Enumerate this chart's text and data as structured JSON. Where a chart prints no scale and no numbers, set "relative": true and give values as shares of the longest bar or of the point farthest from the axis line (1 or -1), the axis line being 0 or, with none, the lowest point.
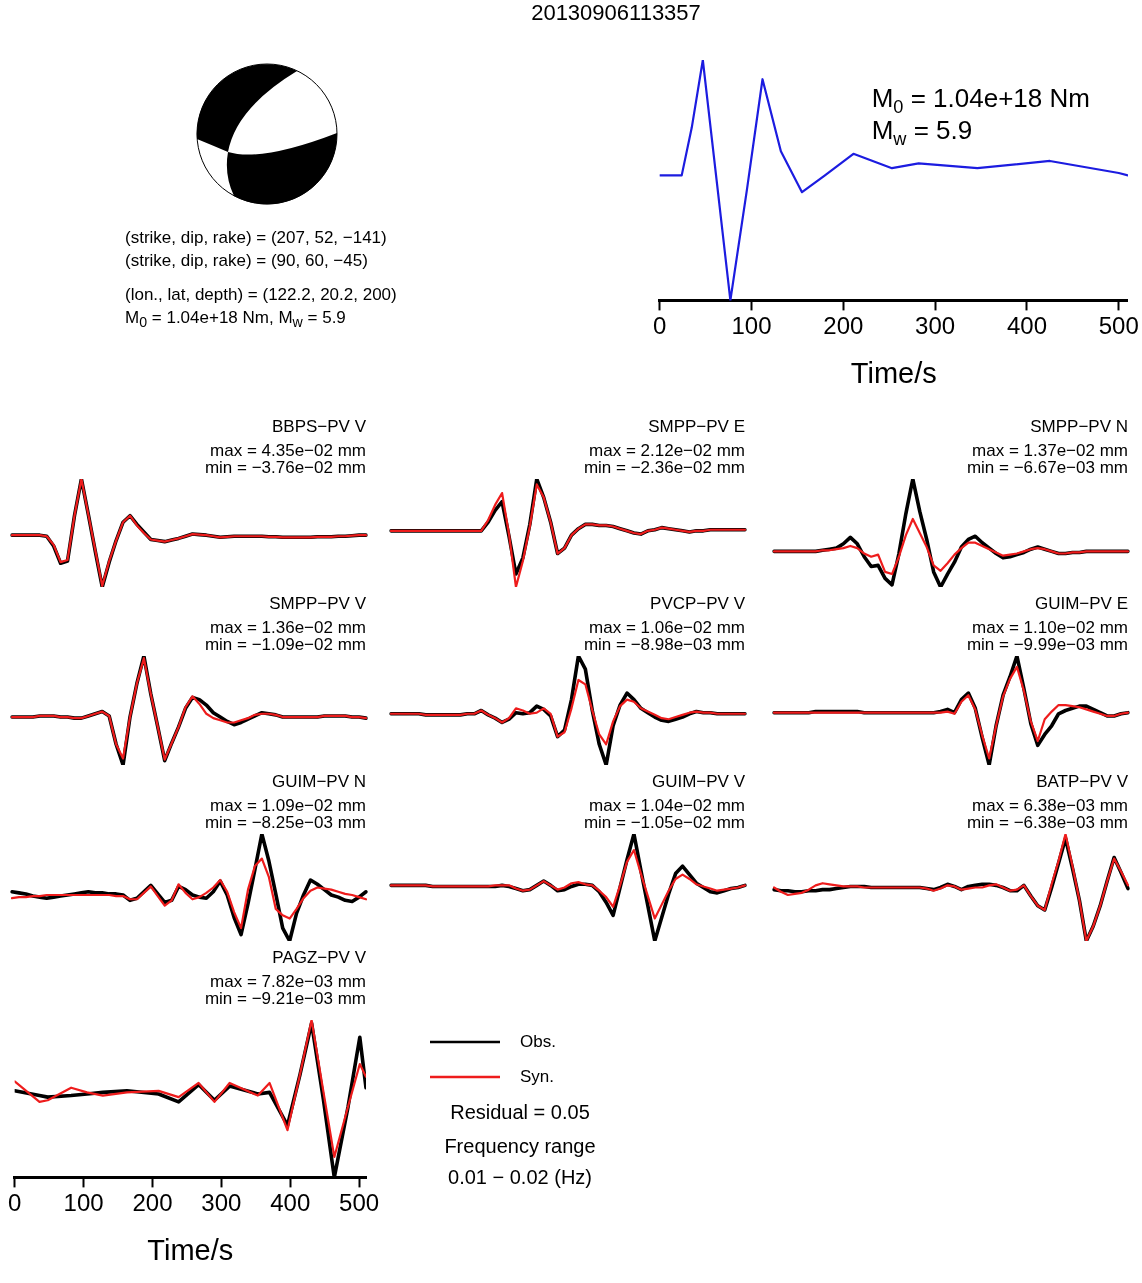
{
  "chart_data": [
    {
      "type": "other",
      "title": "20130906113357",
      "annotations": [
        "(strike, dip, rake) = (207, 52, −141)",
        "(strike, dip, rake) = (90, 60, −45)",
        "(lon., lat, depth) = (122.2, 20.2, 200)",
        "M$_{0}$ = 1.04e+18 Nm, M$_{w}$ = 5.9"
      ]
    },
    {
      "type": "line",
      "relative": true,
      "tick_labels": "x",
      "xlabel": "Time/s",
      "xlim": [
        0,
        510
      ],
      "xticks": [
        0,
        100,
        200,
        300,
        400,
        500
      ],
      "annotations": [
        "M$_{0}$ = 1.04e+18 Nm",
        "M$_{w}$ = 5.9"
      ],
      "x": [
        0,
        24,
        35,
        47,
        62,
        77,
        95,
        112,
        132,
        155,
        180,
        211,
        253,
        282,
        346,
        425,
        500,
        510
      ],
      "series": [
        {
          "color": "#1c1ce0",
          "values": [
            0.52,
            0.52,
            0.72,
            1.0,
            0.5,
            0.0,
            0.46,
            0.92,
            0.62,
            0.45,
            0.52,
            0.61,
            0.55,
            0.57,
            0.55,
            0.58,
            0.53,
            0.52
          ]
        }
      ]
    },
    {
      "type": "line",
      "relative": true,
      "tick_labels": false,
      "title": "BBPS−PV V",
      "annotations": [
        "max = 4.35e−02 mm",
        "min = −3.76e−02 mm"
      ],
      "categories": [
        null,
        null,
        null,
        null,
        null,
        null,
        null,
        null,
        null,
        null,
        null,
        null,
        null,
        null,
        null,
        null,
        null,
        null,
        null,
        null,
        null,
        null,
        null,
        null,
        null,
        null,
        null,
        null,
        null,
        null,
        null,
        null,
        null,
        null,
        null,
        null,
        null,
        null,
        null,
        null,
        null,
        null,
        null,
        null,
        null,
        null,
        null,
        null,
        null,
        null,
        null,
        null
      ],
      "series": [
        {
          "color": "#000000",
          "values": [
            0.48,
            0.48,
            0.48,
            0.48,
            0.48,
            0.47,
            0.38,
            0.22,
            0.24,
            0.66,
            1.0,
            0.67,
            0.33,
            0.0,
            0.23,
            0.43,
            0.6,
            0.66,
            0.58,
            0.51,
            0.44,
            0.43,
            0.42,
            0.435,
            0.45,
            0.47,
            0.49,
            0.485,
            0.48,
            0.47,
            0.46,
            0.465,
            0.47,
            0.47,
            0.47,
            0.47,
            0.47,
            0.465,
            0.465,
            0.46,
            0.46,
            0.46,
            0.46,
            0.46,
            0.465,
            0.465,
            0.465,
            0.47,
            0.47,
            0.475,
            0.48,
            0.48
          ]
        },
        {
          "color": "#ee1c1c",
          "values": [
            0.48,
            0.48,
            0.48,
            0.48,
            0.48,
            0.47,
            0.39,
            0.23,
            0.25,
            0.66,
            1.0,
            0.67,
            0.34,
            0.01,
            0.24,
            0.43,
            0.6,
            0.66,
            0.57,
            0.5,
            0.44,
            0.43,
            0.42,
            0.435,
            0.45,
            0.47,
            0.49,
            0.485,
            0.48,
            0.47,
            0.46,
            0.465,
            0.47,
            0.47,
            0.47,
            0.47,
            0.47,
            0.465,
            0.465,
            0.46,
            0.46,
            0.46,
            0.46,
            0.46,
            0.465,
            0.465,
            0.465,
            0.47,
            0.47,
            0.475,
            0.48,
            0.48
          ]
        }
      ]
    },
    {
      "type": "line",
      "relative": true,
      "tick_labels": false,
      "title": "SMPP−PV E",
      "annotations": [
        "max = 2.12e−02 mm",
        "min = −2.36e−02 mm"
      ],
      "categories": [
        null,
        null,
        null,
        null,
        null,
        null,
        null,
        null,
        null,
        null,
        null,
        null,
        null,
        null,
        null,
        null,
        null,
        null,
        null,
        null,
        null,
        null,
        null,
        null,
        null,
        null,
        null,
        null,
        null,
        null,
        null,
        null,
        null,
        null,
        null,
        null,
        null,
        null,
        null,
        null,
        null,
        null,
        null,
        null,
        null,
        null,
        null,
        null,
        null,
        null,
        null,
        null
      ],
      "series": [
        {
          "color": "#000000",
          "values": [
            0.52,
            0.52,
            0.52,
            0.52,
            0.52,
            0.52,
            0.52,
            0.52,
            0.52,
            0.52,
            0.52,
            0.52,
            0.52,
            0.52,
            0.6,
            0.71,
            0.79,
            0.47,
            0.12,
            0.27,
            0.58,
            1.0,
            0.83,
            0.6,
            0.31,
            0.36,
            0.48,
            0.54,
            0.58,
            0.58,
            0.57,
            0.57,
            0.56,
            0.54,
            0.52,
            0.5,
            0.49,
            0.52,
            0.53,
            0.55,
            0.54,
            0.53,
            0.52,
            0.51,
            0.52,
            0.52,
            0.53,
            0.53,
            0.53,
            0.53,
            0.53,
            0.53
          ]
        },
        {
          "color": "#ee1c1c",
          "values": [
            0.52,
            0.52,
            0.52,
            0.52,
            0.52,
            0.52,
            0.52,
            0.52,
            0.52,
            0.52,
            0.52,
            0.52,
            0.52,
            0.52,
            0.62,
            0.76,
            0.87,
            0.49,
            0.0,
            0.24,
            0.56,
            0.95,
            0.83,
            0.6,
            0.31,
            0.36,
            0.48,
            0.54,
            0.58,
            0.58,
            0.57,
            0.57,
            0.56,
            0.54,
            0.52,
            0.5,
            0.49,
            0.52,
            0.53,
            0.55,
            0.54,
            0.53,
            0.52,
            0.51,
            0.52,
            0.52,
            0.53,
            0.53,
            0.53,
            0.53,
            0.53,
            0.53
          ]
        }
      ]
    },
    {
      "type": "line",
      "relative": true,
      "tick_labels": false,
      "title": "SMPP−PV N",
      "annotations": [
        "max = 1.37e−02 mm",
        "min = −6.67e−03 mm"
      ],
      "categories": [
        null,
        null,
        null,
        null,
        null,
        null,
        null,
        null,
        null,
        null,
        null,
        null,
        null,
        null,
        null,
        null,
        null,
        null,
        null,
        null,
        null,
        null,
        null,
        null,
        null,
        null,
        null,
        null,
        null,
        null,
        null,
        null,
        null,
        null,
        null,
        null,
        null,
        null,
        null,
        null,
        null,
        null,
        null,
        null,
        null,
        null,
        null,
        null,
        null,
        null,
        null,
        null
      ],
      "series": [
        {
          "color": "#000000",
          "values": [
            0.33,
            0.33,
            0.33,
            0.33,
            0.33,
            0.33,
            0.33,
            0.34,
            0.35,
            0.36,
            0.4,
            0.46,
            0.4,
            0.28,
            0.19,
            0.2,
            0.08,
            0.02,
            0.31,
            0.68,
            1.0,
            0.7,
            0.44,
            0.14,
            0.0,
            0.12,
            0.23,
            0.37,
            0.44,
            0.47,
            0.41,
            0.36,
            0.31,
            0.27,
            0.28,
            0.3,
            0.32,
            0.35,
            0.37,
            0.35,
            0.33,
            0.31,
            0.31,
            0.32,
            0.32,
            0.33,
            0.33,
            0.33,
            0.33,
            0.33,
            0.33,
            0.33
          ]
        },
        {
          "color": "#ee1c1c",
          "values": [
            0.33,
            0.33,
            0.33,
            0.33,
            0.33,
            0.33,
            0.33,
            0.34,
            0.34,
            0.35,
            0.36,
            0.38,
            0.36,
            0.31,
            0.28,
            0.3,
            0.14,
            0.12,
            0.28,
            0.48,
            0.63,
            0.5,
            0.37,
            0.2,
            0.15,
            0.22,
            0.3,
            0.36,
            0.41,
            0.41,
            0.38,
            0.35,
            0.32,
            0.29,
            0.3,
            0.31,
            0.33,
            0.35,
            0.36,
            0.35,
            0.33,
            0.31,
            0.31,
            0.32,
            0.32,
            0.33,
            0.33,
            0.33,
            0.33,
            0.33,
            0.33,
            0.33
          ]
        }
      ]
    },
    {
      "type": "line",
      "relative": true,
      "tick_labels": false,
      "title": "SMPP−PV V",
      "annotations": [
        "max = 1.36e−02 mm",
        "min = −1.09e−02 mm"
      ],
      "categories": [
        null,
        null,
        null,
        null,
        null,
        null,
        null,
        null,
        null,
        null,
        null,
        null,
        null,
        null,
        null,
        null,
        null,
        null,
        null,
        null,
        null,
        null,
        null,
        null,
        null,
        null,
        null,
        null,
        null,
        null,
        null,
        null,
        null,
        null,
        null,
        null,
        null,
        null,
        null,
        null,
        null,
        null,
        null,
        null,
        null,
        null,
        null,
        null,
        null,
        null,
        null,
        null
      ],
      "series": [
        {
          "color": "#000000",
          "values": [
            0.44,
            0.44,
            0.44,
            0.44,
            0.45,
            0.45,
            0.45,
            0.44,
            0.44,
            0.43,
            0.43,
            0.45,
            0.47,
            0.49,
            0.45,
            0.19,
            0.0,
            0.44,
            0.75,
            1.0,
            0.65,
            0.35,
            0.04,
            0.2,
            0.35,
            0.52,
            0.62,
            0.6,
            0.55,
            0.48,
            0.44,
            0.4,
            0.37,
            0.39,
            0.42,
            0.45,
            0.48,
            0.47,
            0.46,
            0.44,
            0.44,
            0.44,
            0.44,
            0.44,
            0.44,
            0.45,
            0.45,
            0.45,
            0.45,
            0.44,
            0.44,
            0.43
          ]
        },
        {
          "color": "#ee1c1c",
          "values": [
            0.44,
            0.44,
            0.44,
            0.44,
            0.45,
            0.45,
            0.45,
            0.44,
            0.44,
            0.43,
            0.43,
            0.45,
            0.47,
            0.49,
            0.45,
            0.19,
            0.06,
            0.44,
            0.75,
            0.98,
            0.65,
            0.35,
            0.05,
            0.2,
            0.35,
            0.53,
            0.63,
            0.56,
            0.47,
            0.43,
            0.41,
            0.39,
            0.39,
            0.41,
            0.43,
            0.46,
            0.47,
            0.47,
            0.46,
            0.44,
            0.44,
            0.44,
            0.44,
            0.44,
            0.44,
            0.45,
            0.45,
            0.45,
            0.45,
            0.44,
            0.44,
            0.43
          ]
        }
      ]
    },
    {
      "type": "line",
      "relative": true,
      "tick_labels": false,
      "title": "PVCP−PV V",
      "annotations": [
        "max = 1.06e−02 mm",
        "min = −8.98e−03 mm"
      ],
      "categories": [
        null,
        null,
        null,
        null,
        null,
        null,
        null,
        null,
        null,
        null,
        null,
        null,
        null,
        null,
        null,
        null,
        null,
        null,
        null,
        null,
        null,
        null,
        null,
        null,
        null,
        null,
        null,
        null,
        null,
        null,
        null,
        null,
        null,
        null,
        null,
        null,
        null,
        null,
        null,
        null,
        null,
        null,
        null,
        null,
        null,
        null,
        null,
        null,
        null,
        null,
        null,
        null
      ],
      "series": [
        {
          "color": "#000000",
          "values": [
            0.47,
            0.47,
            0.47,
            0.47,
            0.47,
            0.46,
            0.46,
            0.46,
            0.46,
            0.46,
            0.46,
            0.47,
            0.47,
            0.5,
            0.46,
            0.43,
            0.39,
            0.42,
            0.48,
            0.47,
            0.48,
            0.54,
            0.51,
            0.45,
            0.26,
            0.32,
            0.6,
            1.0,
            0.88,
            0.5,
            0.19,
            0.0,
            0.36,
            0.55,
            0.66,
            0.6,
            0.52,
            0.48,
            0.44,
            0.41,
            0.4,
            0.42,
            0.44,
            0.47,
            0.49,
            0.48,
            0.48,
            0.47,
            0.47,
            0.47,
            0.47,
            0.47
          ]
        },
        {
          "color": "#ee1c1c",
          "values": [
            0.47,
            0.47,
            0.47,
            0.47,
            0.47,
            0.46,
            0.46,
            0.46,
            0.46,
            0.46,
            0.46,
            0.47,
            0.47,
            0.5,
            0.46,
            0.43,
            0.39,
            0.43,
            0.52,
            0.5,
            0.47,
            0.48,
            0.52,
            0.47,
            0.26,
            0.3,
            0.52,
            0.78,
            0.74,
            0.5,
            0.28,
            0.19,
            0.4,
            0.54,
            0.6,
            0.58,
            0.52,
            0.49,
            0.46,
            0.43,
            0.42,
            0.44,
            0.46,
            0.48,
            0.49,
            0.48,
            0.48,
            0.47,
            0.47,
            0.47,
            0.47,
            0.47
          ]
        }
      ]
    },
    {
      "type": "line",
      "relative": true,
      "tick_labels": false,
      "title": "GUIM−PV E",
      "annotations": [
        "max = 1.10e−02 mm",
        "min = −9.99e−03 mm"
      ],
      "categories": [
        null,
        null,
        null,
        null,
        null,
        null,
        null,
        null,
        null,
        null,
        null,
        null,
        null,
        null,
        null,
        null,
        null,
        null,
        null,
        null,
        null,
        null,
        null,
        null,
        null,
        null,
        null,
        null,
        null,
        null,
        null,
        null,
        null,
        null,
        null,
        null,
        null,
        null,
        null,
        null,
        null,
        null,
        null,
        null,
        null,
        null,
        null,
        null,
        null,
        null,
        null,
        null
      ],
      "series": [
        {
          "color": "#000000",
          "values": [
            0.48,
            0.48,
            0.48,
            0.48,
            0.48,
            0.48,
            0.49,
            0.49,
            0.49,
            0.49,
            0.49,
            0.49,
            0.49,
            0.48,
            0.48,
            0.48,
            0.48,
            0.48,
            0.48,
            0.48,
            0.48,
            0.48,
            0.48,
            0.48,
            0.49,
            0.51,
            0.48,
            0.6,
            0.66,
            0.52,
            0.25,
            0.0,
            0.36,
            0.64,
            0.81,
            1.0,
            0.7,
            0.38,
            0.18,
            0.28,
            0.36,
            0.47,
            0.5,
            0.52,
            0.54,
            0.54,
            0.51,
            0.48,
            0.45,
            0.45,
            0.47,
            0.48
          ]
        },
        {
          "color": "#ee1c1c",
          "values": [
            0.48,
            0.48,
            0.48,
            0.48,
            0.48,
            0.48,
            0.48,
            0.48,
            0.48,
            0.48,
            0.48,
            0.48,
            0.48,
            0.48,
            0.48,
            0.48,
            0.48,
            0.48,
            0.48,
            0.48,
            0.48,
            0.48,
            0.48,
            0.48,
            0.48,
            0.49,
            0.47,
            0.58,
            0.64,
            0.51,
            0.27,
            0.06,
            0.36,
            0.63,
            0.79,
            0.9,
            0.68,
            0.4,
            0.22,
            0.42,
            0.49,
            0.55,
            0.55,
            0.54,
            0.53,
            0.51,
            0.49,
            0.47,
            0.45,
            0.45,
            0.47,
            0.48
          ]
        }
      ]
    },
    {
      "type": "line",
      "relative": true,
      "tick_labels": false,
      "title": "GUIM−PV N",
      "annotations": [
        "max = 1.09e−02 mm",
        "min = −8.25e−03 mm"
      ],
      "categories": [
        null,
        null,
        null,
        null,
        null,
        null,
        null,
        null,
        null,
        null,
        null,
        null,
        null,
        null,
        null,
        null,
        null,
        null,
        null,
        null,
        null,
        null,
        null,
        null,
        null,
        null,
        null,
        null,
        null,
        null,
        null,
        null,
        null,
        null,
        null,
        null,
        null,
        null,
        null,
        null,
        null,
        null,
        null,
        null,
        null,
        null,
        null,
        null,
        null,
        null,
        null,
        null
      ],
      "series": [
        {
          "color": "#000000",
          "values": [
            0.46,
            0.45,
            0.44,
            0.42,
            0.41,
            0.4,
            0.41,
            0.42,
            0.43,
            0.44,
            0.45,
            0.46,
            0.45,
            0.45,
            0.44,
            0.44,
            0.43,
            0.38,
            0.4,
            0.46,
            0.52,
            0.44,
            0.36,
            0.38,
            0.51,
            0.48,
            0.43,
            0.41,
            0.4,
            0.46,
            0.56,
            0.43,
            0.22,
            0.06,
            0.35,
            0.67,
            1.0,
            0.75,
            0.44,
            0.12,
            0.0,
            0.26,
            0.43,
            0.57,
            0.53,
            0.48,
            0.43,
            0.41,
            0.38,
            0.37,
            0.41,
            0.46
          ]
        },
        {
          "color": "#ee1c1c",
          "values": [
            0.4,
            0.41,
            0.41,
            0.42,
            0.42,
            0.43,
            0.43,
            0.43,
            0.43,
            0.43,
            0.43,
            0.43,
            0.43,
            0.43,
            0.43,
            0.42,
            0.42,
            0.39,
            0.39,
            0.45,
            0.51,
            0.42,
            0.33,
            0.38,
            0.53,
            0.45,
            0.39,
            0.41,
            0.45,
            0.5,
            0.57,
            0.46,
            0.27,
            0.12,
            0.48,
            0.7,
            0.77,
            0.6,
            0.3,
            0.24,
            0.21,
            0.3,
            0.4,
            0.47,
            0.5,
            0.49,
            0.48,
            0.46,
            0.44,
            0.43,
            0.41,
            0.39
          ]
        }
      ]
    },
    {
      "type": "line",
      "relative": true,
      "tick_labels": false,
      "title": "GUIM−PV V",
      "annotations": [
        "max = 1.04e−02 mm",
        "min = −1.05e−02 mm"
      ],
      "categories": [
        null,
        null,
        null,
        null,
        null,
        null,
        null,
        null,
        null,
        null,
        null,
        null,
        null,
        null,
        null,
        null,
        null,
        null,
        null,
        null,
        null,
        null,
        null,
        null,
        null,
        null,
        null,
        null,
        null,
        null,
        null,
        null,
        null,
        null,
        null,
        null,
        null,
        null,
        null,
        null,
        null,
        null,
        null,
        null,
        null,
        null,
        null,
        null,
        null,
        null,
        null,
        null
      ],
      "series": [
        {
          "color": "#000000",
          "values": [
            0.52,
            0.52,
            0.52,
            0.52,
            0.52,
            0.52,
            0.51,
            0.51,
            0.51,
            0.51,
            0.51,
            0.51,
            0.51,
            0.51,
            0.51,
            0.51,
            0.52,
            0.51,
            0.49,
            0.47,
            0.48,
            0.52,
            0.56,
            0.52,
            0.47,
            0.48,
            0.51,
            0.53,
            0.53,
            0.52,
            0.46,
            0.36,
            0.24,
            0.5,
            0.76,
            1.0,
            0.66,
            0.33,
            0.0,
            0.22,
            0.44,
            0.63,
            0.7,
            0.62,
            0.54,
            0.5,
            0.46,
            0.45,
            0.47,
            0.49,
            0.5,
            0.52
          ]
        },
        {
          "color": "#ee1c1c",
          "values": [
            0.52,
            0.52,
            0.52,
            0.52,
            0.52,
            0.52,
            0.51,
            0.51,
            0.51,
            0.51,
            0.51,
            0.51,
            0.51,
            0.51,
            0.51,
            0.52,
            0.52,
            0.52,
            0.49,
            0.47,
            0.48,
            0.52,
            0.56,
            0.52,
            0.48,
            0.5,
            0.54,
            0.55,
            0.53,
            0.52,
            0.47,
            0.41,
            0.32,
            0.52,
            0.74,
            0.85,
            0.63,
            0.42,
            0.21,
            0.34,
            0.47,
            0.58,
            0.62,
            0.58,
            0.53,
            0.51,
            0.49,
            0.47,
            0.48,
            0.49,
            0.5,
            0.52
          ]
        }
      ]
    },
    {
      "type": "line",
      "relative": true,
      "tick_labels": false,
      "title": "BATP−PV V",
      "annotations": [
        "max = 6.38e−03 mm",
        "min = −6.38e−03 mm"
      ],
      "categories": [
        null,
        null,
        null,
        null,
        null,
        null,
        null,
        null,
        null,
        null,
        null,
        null,
        null,
        null,
        null,
        null,
        null,
        null,
        null,
        null,
        null,
        null,
        null,
        null,
        null,
        null,
        null,
        null,
        null,
        null,
        null,
        null,
        null,
        null,
        null,
        null,
        null,
        null,
        null,
        null,
        null,
        null,
        null,
        null,
        null,
        null,
        null,
        null,
        null,
        null,
        null,
        null
      ],
      "series": [
        {
          "color": "#000000",
          "values": [
            0.48,
            0.47,
            0.47,
            0.46,
            0.46,
            0.47,
            0.47,
            0.48,
            0.48,
            0.49,
            0.5,
            0.51,
            0.51,
            0.51,
            0.5,
            0.5,
            0.5,
            0.5,
            0.5,
            0.5,
            0.5,
            0.5,
            0.49,
            0.48,
            0.5,
            0.53,
            0.51,
            0.48,
            0.51,
            0.52,
            0.53,
            0.53,
            0.52,
            0.5,
            0.47,
            0.47,
            0.52,
            0.42,
            0.33,
            0.29,
            0.5,
            0.73,
            0.96,
            0.68,
            0.38,
            0.0,
            0.14,
            0.33,
            0.56,
            0.78,
            0.64,
            0.49
          ]
        },
        {
          "color": "#ee1c1c",
          "values": [
            0.5,
            0.46,
            0.43,
            0.44,
            0.45,
            0.48,
            0.52,
            0.54,
            0.53,
            0.52,
            0.51,
            0.51,
            0.51,
            0.5,
            0.5,
            0.5,
            0.5,
            0.5,
            0.5,
            0.5,
            0.5,
            0.5,
            0.49,
            0.47,
            0.49,
            0.52,
            0.51,
            0.48,
            0.49,
            0.5,
            0.5,
            0.52,
            0.53,
            0.5,
            0.47,
            0.48,
            0.52,
            0.42,
            0.33,
            0.29,
            0.53,
            0.75,
            1.0,
            0.7,
            0.38,
            0.0,
            0.14,
            0.33,
            0.56,
            0.77,
            0.65,
            0.52
          ]
        }
      ]
    },
    {
      "type": "line",
      "relative": true,
      "tick_labels": "x",
      "title": "PAGZ−PV V",
      "xlabel": "Time/s",
      "xlim": [
        0,
        510
      ],
      "xticks": [
        0,
        100,
        200,
        300,
        400,
        500
      ],
      "legend": "right",
      "annotations": [
        "max = 7.82e−03 mm",
        "min = −9.21e−03 mm",
        "Residual = 0.05",
        "Frequency range",
        "0.01 − 0.02 (Hz)"
      ],
      "x": [
        0,
        36,
        48,
        82,
        105,
        128,
        163,
        209,
        238,
        267,
        290,
        312,
        353,
        370,
        396,
        414,
        431,
        448,
        464,
        484,
        501,
        510
      ],
      "series": [
        {
          "name": "Obs.",
          "color": "#000000",
          "values": [
            0.55,
            0.52,
            0.51,
            0.52,
            0.53,
            0.54,
            0.55,
            0.53,
            0.48,
            0.59,
            0.49,
            0.58,
            0.53,
            0.54,
            0.33,
            0.65,
            0.98,
            0.5,
            0.0,
            0.45,
            0.89,
            0.57
          ]
        },
        {
          "name": "Syn.",
          "color": "#ee1c1c",
          "values": [
            0.61,
            0.48,
            0.49,
            0.57,
            0.54,
            0.52,
            0.54,
            0.55,
            0.51,
            0.6,
            0.48,
            0.6,
            0.52,
            0.6,
            0.3,
            0.65,
            1.0,
            0.55,
            0.13,
            0.45,
            0.72,
            0.64
          ]
        }
      ]
    }
  ]
}
